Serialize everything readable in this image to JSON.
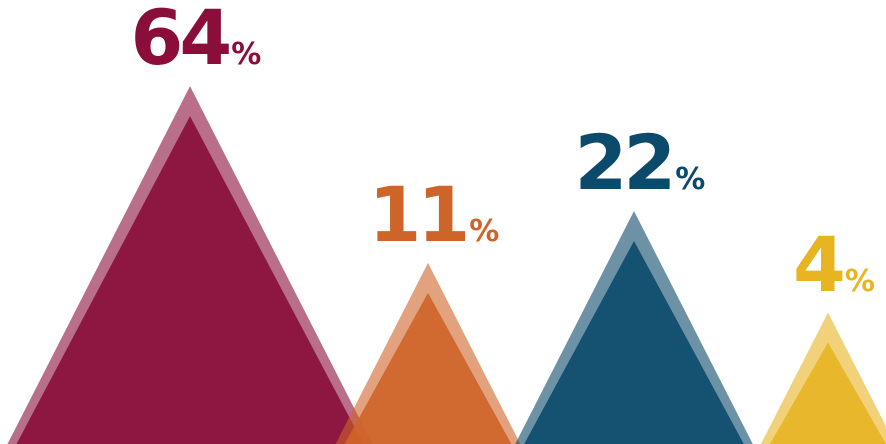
{
  "chart_data": {
    "type": "area",
    "title": "",
    "categories": [
      "",
      "",
      "",
      ""
    ],
    "values": [
      64,
      11,
      22,
      4
    ],
    "unit": "%",
    "colors": [
      "#8a0d3a",
      "#cf6428",
      "#0b4a6b",
      "#e8b422"
    ],
    "grid": false,
    "legend": "none",
    "data_labels": [
      {
        "number": "64",
        "sign": "%"
      },
      {
        "number": "11",
        "sign": "%"
      },
      {
        "number": "22",
        "sign": "%"
      },
      {
        "number": "4",
        "sign": "%"
      }
    ]
  }
}
